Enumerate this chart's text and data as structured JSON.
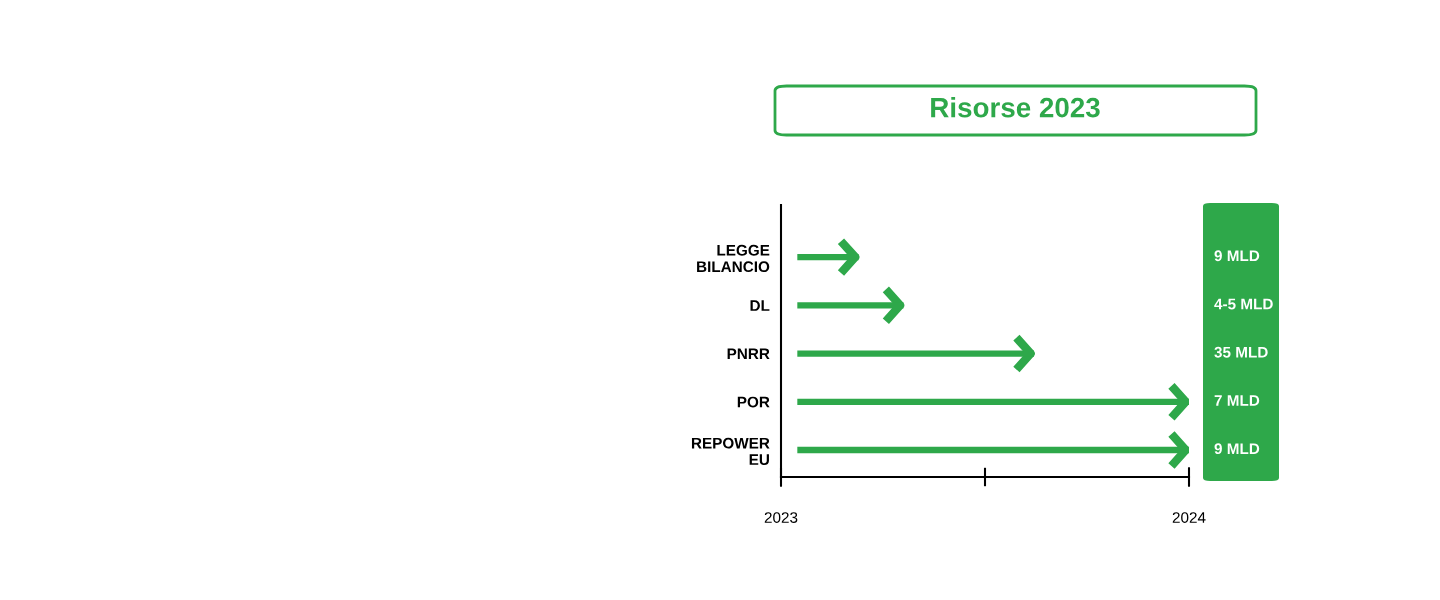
{
  "chart_data": {
    "type": "bar",
    "orientation": "horizontal",
    "title": "Risorse 2023",
    "categories": [
      "LEGGE\nBILANCIO",
      "DL",
      "PNRR",
      "POR",
      "REPOWER\nEU"
    ],
    "base": [
      2023.04,
      2023.04,
      2023.04,
      2023.04,
      2023.04
    ],
    "values": [
      0.15,
      0.26,
      0.58,
      0.96,
      0.96
    ],
    "annotations": [
      "9 MLD",
      "4-5 MLD",
      "35 MLD",
      "7 MLD",
      "9 MLD"
    ],
    "color": "#2ea84a",
    "xlim": [
      2023,
      2024
    ],
    "xticks": [
      2023,
      2024
    ],
    "grid": false
  }
}
